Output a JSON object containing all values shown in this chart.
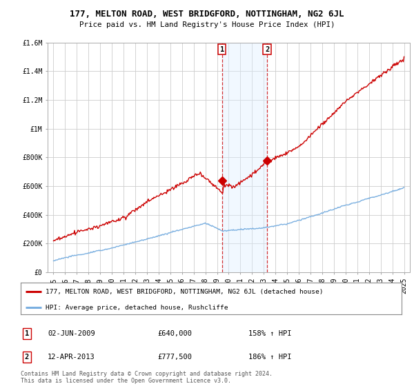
{
  "title": "177, MELTON ROAD, WEST BRIDGFORD, NOTTINGHAM, NG2 6JL",
  "subtitle": "Price paid vs. HM Land Registry's House Price Index (HPI)",
  "legend_line1": "177, MELTON ROAD, WEST BRIDGFORD, NOTTINGHAM, NG2 6JL (detached house)",
  "legend_line2": "HPI: Average price, detached house, Rushcliffe",
  "footer": "Contains HM Land Registry data © Crown copyright and database right 2024.\nThis data is licensed under the Open Government Licence v3.0.",
  "sale1_date": "02-JUN-2009",
  "sale1_price": "£640,000",
  "sale1_hpi": "158% ↑ HPI",
  "sale2_date": "12-APR-2013",
  "sale2_price": "£777,500",
  "sale2_hpi": "186% ↑ HPI",
  "sale1_x": 2009.42,
  "sale1_y": 640000,
  "sale2_x": 2013.28,
  "sale2_y": 777500,
  "hpi_color": "#7aafe0",
  "price_color": "#cc0000",
  "vline_color": "#cc0000",
  "vspan_color": "#ddeeff",
  "ylim": [
    0,
    1600000
  ],
  "yticks": [
    0,
    200000,
    400000,
    600000,
    800000,
    1000000,
    1200000,
    1400000,
    1600000
  ],
  "ytick_labels": [
    "£0",
    "£200K",
    "£400K",
    "£600K",
    "£800K",
    "£1M",
    "£1.2M",
    "£1.4M",
    "£1.6M"
  ],
  "xmin": 1994.5,
  "xmax": 2025.5,
  "background_color": "#ffffff",
  "grid_color": "#cccccc"
}
